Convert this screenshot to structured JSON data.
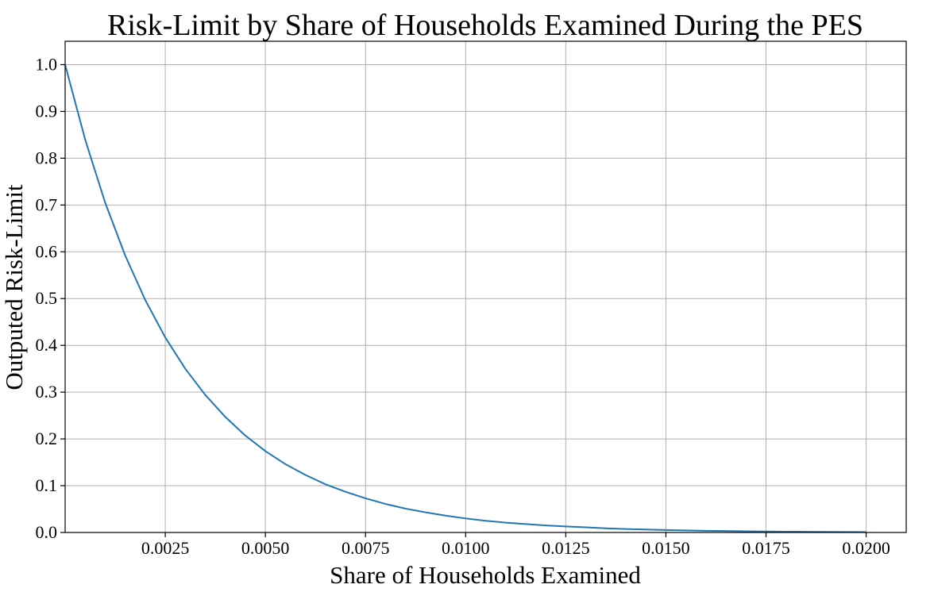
{
  "chart_data": {
    "type": "line",
    "title": "Risk-Limit by Share of Households Examined During the PES",
    "xlabel": "Share of Households Examined",
    "ylabel": "Outputed Risk-Limit",
    "xlim": [
      0.0,
      0.021
    ],
    "ylim": [
      0.0,
      1.05
    ],
    "grid": true,
    "x_ticks": [
      "0.0025",
      "0.0050",
      "0.0075",
      "0.0100",
      "0.0125",
      "0.0150",
      "0.0175",
      "0.0200"
    ],
    "x_tick_values": [
      0.0025,
      0.005,
      0.0075,
      0.01,
      0.0125,
      0.015,
      0.0175,
      0.02
    ],
    "y_ticks": [
      "0.0",
      "0.1",
      "0.2",
      "0.3",
      "0.4",
      "0.5",
      "0.6",
      "0.7",
      "0.8",
      "0.9",
      "1.0"
    ],
    "y_tick_values": [
      0.0,
      0.1,
      0.2,
      0.3,
      0.4,
      0.5,
      0.6,
      0.7,
      0.8,
      0.9,
      1.0
    ],
    "series": [
      {
        "color": "#1f77b4",
        "x": [
          0.0,
          0.0005,
          0.001,
          0.0015,
          0.002,
          0.0025,
          0.003,
          0.0035,
          0.004,
          0.0045,
          0.005,
          0.0055,
          0.006,
          0.0065,
          0.007,
          0.0075,
          0.008,
          0.0085,
          0.009,
          0.0095,
          0.01,
          0.0105,
          0.011,
          0.0115,
          0.012,
          0.0125,
          0.013,
          0.0135,
          0.014,
          0.0145,
          0.015,
          0.0155,
          0.016,
          0.0165,
          0.017,
          0.0175,
          0.018,
          0.0185,
          0.019,
          0.0195,
          0.02
        ],
        "y": [
          1.0,
          0.84,
          0.705,
          0.592,
          0.497,
          0.417,
          0.35,
          0.294,
          0.247,
          0.207,
          0.174,
          0.146,
          0.123,
          0.103,
          0.087,
          0.073,
          0.061,
          0.051,
          0.043,
          0.036,
          0.03,
          0.025,
          0.021,
          0.018,
          0.015,
          0.013,
          0.011,
          0.009,
          0.0075,
          0.0063,
          0.0053,
          0.0044,
          0.0037,
          0.0031,
          0.0026,
          0.0022,
          0.0018,
          0.0015,
          0.0013,
          0.0011,
          0.0009
        ]
      }
    ]
  }
}
